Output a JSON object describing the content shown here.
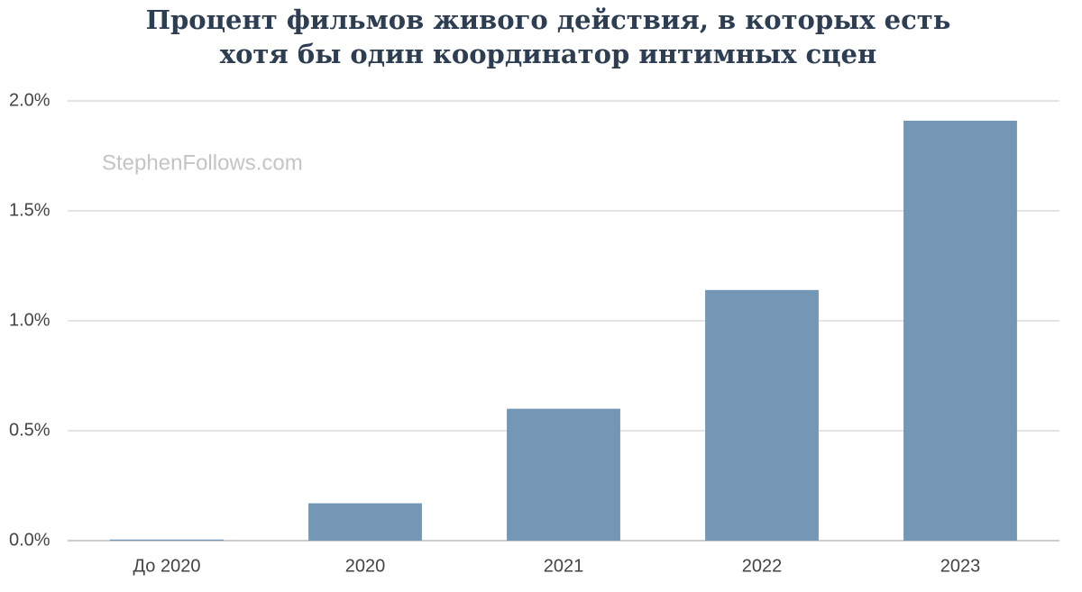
{
  "chart_data": {
    "type": "bar",
    "title": [
      "Процент фильмов живого действия, в которых есть",
      "хотя бы один координатор интимных сцен"
    ],
    "watermark": "StephenFollows.com",
    "categories": [
      "До 2020",
      "2020",
      "2021",
      "2022",
      "2023"
    ],
    "values": [
      0.005,
      0.17,
      0.6,
      1.14,
      1.91
    ],
    "color": "#7397b5",
    "ylim": [
      0,
      2
    ],
    "yticks": [
      {
        "value": 0,
        "label": "0.0%"
      },
      {
        "value": 0.5,
        "label": "0.5%"
      },
      {
        "value": 1,
        "label": "1.0%"
      },
      {
        "value": 1.5,
        "label": "1.5%"
      },
      {
        "value": 2,
        "label": "2.0%"
      }
    ],
    "grid": true
  }
}
